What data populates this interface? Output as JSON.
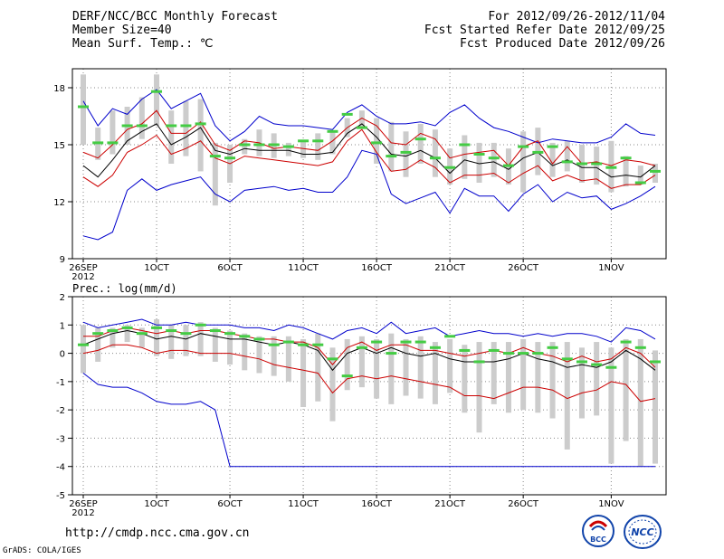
{
  "header": {
    "title": "DERF/NCC/BCC Monthly Forecast",
    "member_size": "Member Size=40",
    "variable": "Mean Surf. Temp.: ℃",
    "period": "For 2012/09/26-2012/11/04",
    "fcst_started": "Fcst Started Refer Date 2012/09/25",
    "fcst_produced": "Fcst Produced Date 2012/09/26"
  },
  "footer": {
    "url": "http://cmdp.ncc.cma.gov.cn",
    "grads": "GrADS: COLA/IGES",
    "logo_left": "BCC",
    "logo_right": "NCC"
  },
  "colors": {
    "max_min": "#0000cc",
    "spread": "#cc0000",
    "mean": "#000000",
    "ensemble": "#44cc44",
    "box": "#cccccc",
    "grid": "#888888"
  },
  "chart_data": [
    {
      "type": "line",
      "title": "Mean Surf. Temp.: ℃",
      "x_tick_labels": [
        "26SEP",
        "1OCT",
        "6OCT",
        "11OCT",
        "16OCT",
        "21OCT",
        "26OCT",
        "1NOV"
      ],
      "x_tick_days": [
        0,
        5,
        10,
        15,
        20,
        25,
        30,
        36
      ],
      "x_sublabel": "2012",
      "xlim": [
        0,
        39
      ],
      "ylim": [
        9,
        19
      ],
      "y_ticks": [
        9,
        12,
        15,
        18
      ],
      "series": [
        {
          "name": "max",
          "color": "#0000cc",
          "values": [
            17.3,
            16.0,
            16.9,
            16.6,
            17.4,
            17.9,
            16.9,
            17.3,
            17.7,
            16.0,
            15.2,
            15.7,
            16.5,
            16.1,
            16.0,
            16.0,
            15.9,
            15.8,
            16.7,
            17.1,
            16.5,
            16.1,
            16.1,
            16.2,
            16.0,
            16.7,
            17.1,
            16.4,
            15.9,
            15.7,
            15.4,
            15.1,
            15.3,
            15.2,
            15.1,
            15.1,
            15.4,
            16.1,
            15.6,
            15.5
          ]
        },
        {
          "name": "upper",
          "color": "#cc0000",
          "values": [
            14.6,
            14.3,
            15.0,
            15.8,
            16.1,
            16.8,
            15.6,
            15.6,
            16.2,
            15.0,
            14.7,
            15.2,
            15.1,
            14.8,
            14.9,
            14.8,
            14.7,
            15.2,
            15.9,
            16.4,
            16.0,
            15.1,
            15.0,
            15.6,
            15.3,
            14.3,
            14.5,
            14.6,
            14.7,
            13.9,
            14.9,
            15.2,
            14.0,
            14.9,
            14.0,
            14.1,
            13.9,
            14.2,
            14.1,
            13.9
          ]
        },
        {
          "name": "mean",
          "color": "#000000",
          "values": [
            13.9,
            13.3,
            14.2,
            15.2,
            15.7,
            16.1,
            15.0,
            15.4,
            15.9,
            14.7,
            14.5,
            14.8,
            14.7,
            14.7,
            14.7,
            14.5,
            14.5,
            14.6,
            15.6,
            16.1,
            15.4,
            14.5,
            14.4,
            14.7,
            14.3,
            13.5,
            14.2,
            14.0,
            14.1,
            13.7,
            14.3,
            14.6,
            13.9,
            14.2,
            13.8,
            13.8,
            13.3,
            13.4,
            13.3,
            13.9
          ]
        },
        {
          "name": "lower",
          "color": "#cc0000",
          "values": [
            13.3,
            12.8,
            13.4,
            14.6,
            15.0,
            15.5,
            14.5,
            14.8,
            15.2,
            14.3,
            14.0,
            14.4,
            14.3,
            14.2,
            14.1,
            14.0,
            13.9,
            14.1,
            15.2,
            15.8,
            14.6,
            13.6,
            13.7,
            14.2,
            13.8,
            13.0,
            13.4,
            13.4,
            13.5,
            13.0,
            13.5,
            13.9,
            13.1,
            13.4,
            13.1,
            13.2,
            12.7,
            12.9,
            12.9,
            13.4
          ]
        },
        {
          "name": "min",
          "color": "#0000cc",
          "values": [
            10.2,
            10.0,
            10.4,
            12.6,
            13.2,
            12.6,
            12.9,
            13.1,
            13.3,
            12.4,
            12.0,
            12.6,
            12.7,
            12.8,
            12.6,
            12.7,
            12.5,
            12.5,
            13.3,
            14.7,
            14.5,
            12.4,
            11.9,
            12.2,
            12.5,
            11.4,
            12.7,
            12.3,
            12.3,
            11.5,
            12.4,
            12.9,
            12.0,
            12.5,
            12.2,
            12.3,
            11.6,
            11.9,
            12.3,
            12.8
          ]
        },
        {
          "name": "ensemble",
          "color": "#44cc44",
          "values": [
            17.0,
            15.1,
            15.1,
            16.0,
            16.0,
            17.8,
            16.0,
            16.0,
            16.1,
            14.4,
            14.3,
            15.0,
            15.0,
            15.0,
            14.9,
            15.2,
            15.2,
            15.7,
            16.6,
            15.9,
            15.1,
            14.4,
            14.6,
            15.3,
            14.3,
            13.8,
            15.0,
            14.5,
            14.3,
            13.9,
            14.9,
            14.6,
            14.9,
            14.1,
            14.0,
            14.0,
            13.8,
            14.3,
            13.0,
            13.6
          ]
        }
      ],
      "box_low": [
        15.0,
        14.2,
        14.5,
        15.0,
        15.3,
        16.0,
        14.0,
        14.4,
        13.6,
        11.8,
        13.0,
        14.5,
        14.4,
        14.3,
        14.4,
        14.3,
        14.2,
        14.5,
        15.4,
        15.9,
        14.0,
        13.6,
        13.3,
        14.0,
        13.3,
        12.9,
        13.2,
        13.0,
        13.3,
        12.9,
        12.5,
        13.4,
        13.3,
        13.6,
        13.0,
        12.9,
        12.5,
        12.8,
        12.9,
        13.0
      ],
      "box_high": [
        18.7,
        15.9,
        16.8,
        17.0,
        17.5,
        18.7,
        16.8,
        17.3,
        17.4,
        15.1,
        15.0,
        15.3,
        15.8,
        15.6,
        15.1,
        15.2,
        15.6,
        15.7,
        16.4,
        16.8,
        16.4,
        16.2,
        15.7,
        16.1,
        15.8,
        14.8,
        15.5,
        15.1,
        15.1,
        14.8,
        15.7,
        15.9,
        15.1,
        15.2,
        15.0,
        14.9,
        15.2,
        14.4,
        13.9,
        14.0
      ]
    },
    {
      "type": "line",
      "title": "Prec.: log(mm/d)",
      "x_tick_labels": [
        "26SEP",
        "1OCT",
        "6OCT",
        "11OCT",
        "16OCT",
        "21OCT",
        "26OCT",
        "1NOV"
      ],
      "x_tick_days": [
        0,
        5,
        10,
        15,
        20,
        25,
        30,
        36
      ],
      "x_sublabel": "2012",
      "xlim": [
        0,
        39
      ],
      "ylim": [
        -5,
        2
      ],
      "y_ticks": [
        -5,
        -4,
        -3,
        -2,
        -1,
        0,
        1,
        2
      ],
      "series": [
        {
          "name": "max",
          "color": "#0000cc",
          "values": [
            1.1,
            0.9,
            1.0,
            1.1,
            1.2,
            1.0,
            1.0,
            1.1,
            1.0,
            1.0,
            1.0,
            0.9,
            0.9,
            0.8,
            1.0,
            0.9,
            0.7,
            0.5,
            0.8,
            0.9,
            0.7,
            1.1,
            0.7,
            0.8,
            0.9,
            0.6,
            0.7,
            0.8,
            0.7,
            0.7,
            0.6,
            0.7,
            0.6,
            0.7,
            0.7,
            0.6,
            0.4,
            0.9,
            0.8,
            0.5
          ]
        },
        {
          "name": "upper",
          "color": "#cc0000",
          "values": [
            0.6,
            0.6,
            0.8,
            0.9,
            0.8,
            0.7,
            0.8,
            0.7,
            0.8,
            0.8,
            0.7,
            0.6,
            0.5,
            0.5,
            0.4,
            0.4,
            0.2,
            -0.4,
            0.2,
            0.4,
            0.1,
            0.3,
            0.3,
            0.1,
            0.1,
            0.0,
            -0.1,
            0.0,
            0.1,
            0.0,
            0.2,
            0.0,
            -0.1,
            -0.3,
            -0.1,
            -0.3,
            -0.2,
            0.2,
            0.0,
            -0.5
          ]
        },
        {
          "name": "mean",
          "color": "#000000",
          "values": [
            0.3,
            0.5,
            0.7,
            0.8,
            0.7,
            0.5,
            0.6,
            0.5,
            0.7,
            0.6,
            0.5,
            0.5,
            0.4,
            0.3,
            0.4,
            0.3,
            0.1,
            -0.6,
            0.0,
            0.2,
            0.0,
            0.2,
            0.0,
            -0.1,
            0.0,
            -0.2,
            -0.3,
            -0.3,
            -0.3,
            -0.2,
            0.0,
            -0.2,
            -0.3,
            -0.5,
            -0.4,
            -0.5,
            -0.3,
            0.1,
            -0.2,
            -0.6
          ]
        },
        {
          "name": "lower",
          "color": "#cc0000",
          "values": [
            0.0,
            0.1,
            0.3,
            0.3,
            0.2,
            0.0,
            0.1,
            0.1,
            0.0,
            0.0,
            0.0,
            -0.1,
            -0.2,
            -0.4,
            -0.5,
            -0.6,
            -0.7,
            -1.4,
            -0.9,
            -0.8,
            -0.9,
            -0.8,
            -0.9,
            -1.0,
            -1.1,
            -1.2,
            -1.5,
            -1.5,
            -1.6,
            -1.4,
            -1.2,
            -1.2,
            -1.3,
            -1.6,
            -1.4,
            -1.3,
            -1.0,
            -1.1,
            -1.7,
            -1.6
          ]
        },
        {
          "name": "min",
          "color": "#0000cc",
          "values": [
            -0.7,
            -1.1,
            -1.2,
            -1.2,
            -1.4,
            -1.7,
            -1.8,
            -1.8,
            -1.7,
            -2.0,
            -4.0,
            -4.0,
            -4.0,
            -4.0,
            -4.0,
            -4.0,
            -4.0,
            -4.0,
            -4.0,
            -4.0,
            -4.0,
            -4.0,
            -4.0,
            -4.0,
            -4.0,
            -4.0,
            -4.0,
            -4.0,
            -4.0,
            -4.0,
            -4.0,
            -4.0,
            -4.0,
            -4.0,
            -4.0,
            -4.0,
            -4.0,
            -4.0,
            -4.0,
            -4.0
          ]
        },
        {
          "name": "ensemble",
          "color": "#44cc44",
          "values": [
            0.3,
            0.7,
            0.8,
            0.9,
            0.7,
            0.9,
            0.8,
            0.7,
            1.0,
            0.8,
            0.7,
            0.6,
            0.5,
            0.3,
            0.4,
            0.3,
            0.3,
            -0.2,
            -0.8,
            0.2,
            0.4,
            0.0,
            0.4,
            0.4,
            0.2,
            0.6,
            0.1,
            -0.3,
            0.1,
            0.0,
            0.0,
            0.0,
            0.2,
            -0.2,
            -0.3,
            -0.4,
            -0.5,
            0.4,
            0.2,
            -0.3
          ]
        }
      ],
      "box_low": [
        -0.7,
        -0.3,
        0.2,
        0.4,
        0.2,
        -0.1,
        -0.2,
        -0.1,
        -0.1,
        -0.3,
        -0.4,
        -0.6,
        -0.7,
        -0.8,
        -1.0,
        -1.9,
        -1.7,
        -2.4,
        -1.3,
        -1.2,
        -1.6,
        -1.8,
        -1.5,
        -1.6,
        -1.8,
        -1.4,
        -2.1,
        -2.8,
        -1.8,
        -2.1,
        -2.0,
        -2.1,
        -2.3,
        -3.4,
        -2.3,
        -2.2,
        -3.9,
        -3.1,
        -4.0,
        -3.9
      ],
      "box_high": [
        1.0,
        0.9,
        0.9,
        1.0,
        0.9,
        1.2,
        1.0,
        1.0,
        1.1,
        0.9,
        0.8,
        0.7,
        0.6,
        0.6,
        0.6,
        0.5,
        0.7,
        0.2,
        0.5,
        0.6,
        0.5,
        0.7,
        0.5,
        0.6,
        0.4,
        0.5,
        0.3,
        0.4,
        0.4,
        0.4,
        0.5,
        0.4,
        0.4,
        0.4,
        0.2,
        0.4,
        0.2,
        0.5,
        0.5,
        0.1
      ]
    }
  ]
}
